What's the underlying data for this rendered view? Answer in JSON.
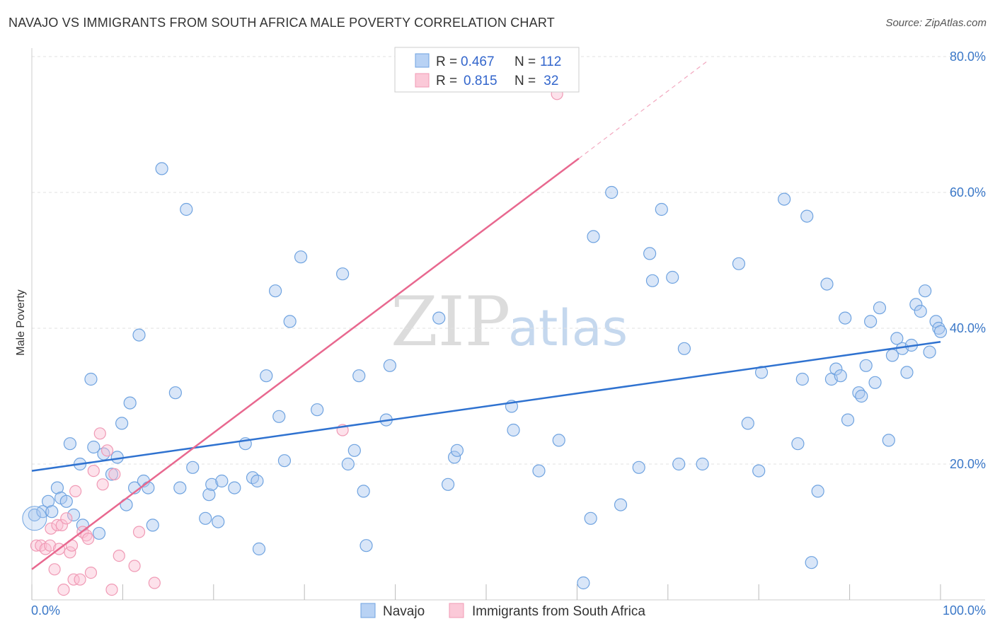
{
  "title": "NAVAJO VS IMMIGRANTS FROM SOUTH AFRICA MALE POVERTY CORRELATION CHART",
  "source": "Source: ZipAtlas.com",
  "watermark": {
    "zip": "ZIP",
    "atlas": "atlas"
  },
  "legend_top": {
    "rows": [
      {
        "r_label": "R = ",
        "r_value": "0.467",
        "n_label": "N = ",
        "n_value": "112"
      },
      {
        "r_label": "R = ",
        "r_value": "0.815",
        "n_label": "N = ",
        "n_value": " 32"
      }
    ]
  },
  "chart_data": {
    "type": "scatter",
    "title": "NAVAJO VS IMMIGRANTS FROM SOUTH AFRICA MALE POVERTY CORRELATION CHART",
    "xlabel": "",
    "ylabel": "Male Poverty",
    "xlim": [
      0,
      100
    ],
    "ylim": [
      0,
      80
    ],
    "x_tick_labels": [
      "0.0%",
      "100.0%"
    ],
    "y_ticks": [
      20,
      40,
      60,
      80
    ],
    "y_tick_labels": [
      "20.0%",
      "40.0%",
      "60.0%",
      "80.0%"
    ],
    "grid": true,
    "legend_placement": "bottom-center",
    "colors": {
      "navajo": "#6fa3e0",
      "south_africa": "#f09ab5",
      "navajo_line": "#2f72d0",
      "south_africa_line": "#e8688f"
    },
    "series": [
      {
        "name": "Navajo",
        "r": 0.467,
        "n": 112,
        "trend": {
          "x": [
            0,
            100
          ],
          "y": [
            19.0,
            38.0
          ]
        },
        "points": [
          [
            0.3,
            12.5
          ],
          [
            1.2,
            13
          ],
          [
            1.8,
            14.5
          ],
          [
            2.2,
            13
          ],
          [
            2.8,
            16.5
          ],
          [
            3.2,
            15
          ],
          [
            3.8,
            14.5
          ],
          [
            4.2,
            23
          ],
          [
            4.6,
            12.5
          ],
          [
            5.3,
            20
          ],
          [
            5.6,
            11
          ],
          [
            6.5,
            32.5
          ],
          [
            6.8,
            22.5
          ],
          [
            7.4,
            9.8
          ],
          [
            7.9,
            21.5
          ],
          [
            8.8,
            18.5
          ],
          [
            9.4,
            21
          ],
          [
            9.9,
            26
          ],
          [
            10.4,
            14
          ],
          [
            10.8,
            29
          ],
          [
            11.3,
            16.5
          ],
          [
            11.8,
            39
          ],
          [
            12.3,
            17.5
          ],
          [
            12.8,
            16.5
          ],
          [
            13.3,
            11
          ],
          [
            14.3,
            63.5
          ],
          [
            15.8,
            30.5
          ],
          [
            16.3,
            16.5
          ],
          [
            17.0,
            57.5
          ],
          [
            17.7,
            19.5
          ],
          [
            19.1,
            12
          ],
          [
            19.5,
            15.5
          ],
          [
            19.8,
            17
          ],
          [
            20.5,
            11.5
          ],
          [
            20.9,
            17.5
          ],
          [
            22.3,
            16.5
          ],
          [
            23.5,
            23
          ],
          [
            24.3,
            18
          ],
          [
            24.8,
            17.5
          ],
          [
            25.0,
            7.5
          ],
          [
            25.8,
            33
          ],
          [
            26.8,
            45.5
          ],
          [
            27.2,
            27
          ],
          [
            27.8,
            20.5
          ],
          [
            28.4,
            41
          ],
          [
            29.6,
            50.5
          ],
          [
            31.4,
            28
          ],
          [
            34.2,
            48
          ],
          [
            34.8,
            20
          ],
          [
            35.5,
            22
          ],
          [
            36.0,
            33
          ],
          [
            36.5,
            16
          ],
          [
            36.8,
            8
          ],
          [
            39.0,
            26.5
          ],
          [
            39.4,
            34.5
          ],
          [
            44.8,
            41.5
          ],
          [
            45.8,
            17
          ],
          [
            46.5,
            21
          ],
          [
            46.8,
            22
          ],
          [
            52.8,
            28.5
          ],
          [
            53.0,
            25
          ],
          [
            55.8,
            19
          ],
          [
            58.0,
            23.5
          ],
          [
            60.7,
            2.5
          ],
          [
            61.5,
            12
          ],
          [
            61.8,
            53.5
          ],
          [
            63.8,
            60
          ],
          [
            64.8,
            14
          ],
          [
            66.8,
            19.5
          ],
          [
            68.0,
            51
          ],
          [
            68.3,
            47
          ],
          [
            69.3,
            57.5
          ],
          [
            70.5,
            47.5
          ],
          [
            71.2,
            20
          ],
          [
            71.8,
            37
          ],
          [
            73.8,
            20
          ],
          [
            77.8,
            49.5
          ],
          [
            78.8,
            26
          ],
          [
            80.0,
            19
          ],
          [
            80.3,
            33.5
          ],
          [
            82.8,
            59
          ],
          [
            84.3,
            23
          ],
          [
            84.8,
            32.5
          ],
          [
            85.3,
            56.5
          ],
          [
            85.8,
            5.5
          ],
          [
            86.5,
            16
          ],
          [
            87.5,
            46.5
          ],
          [
            88.0,
            32.5
          ],
          [
            88.5,
            34
          ],
          [
            89.0,
            33
          ],
          [
            89.5,
            41.5
          ],
          [
            89.8,
            26.5
          ],
          [
            91.0,
            30.5
          ],
          [
            91.3,
            30
          ],
          [
            91.8,
            34.5
          ],
          [
            92.3,
            41
          ],
          [
            92.8,
            32
          ],
          [
            93.3,
            43
          ],
          [
            94.3,
            23.5
          ],
          [
            94.7,
            36
          ],
          [
            95.2,
            38.5
          ],
          [
            95.8,
            37
          ],
          [
            96.3,
            33.5
          ],
          [
            96.8,
            37.5
          ],
          [
            97.3,
            43.5
          ],
          [
            97.8,
            42.5
          ],
          [
            98.3,
            45.5
          ],
          [
            98.8,
            36.5
          ],
          [
            99.5,
            41
          ],
          [
            99.8,
            40
          ],
          [
            100.0,
            39.5
          ]
        ]
      },
      {
        "name": "Immigrants from South Africa",
        "r": 0.815,
        "n": 32,
        "trend": {
          "x": [
            0,
            60.2
          ],
          "y": [
            4.5,
            65.0
          ]
        },
        "trend_extension": {
          "x": [
            60.2,
            74.5
          ],
          "y": [
            65.0,
            79.5
          ]
        },
        "points": [
          [
            0.5,
            8
          ],
          [
            1.0,
            8
          ],
          [
            1.5,
            7.5
          ],
          [
            2.0,
            8
          ],
          [
            2.1,
            10.5
          ],
          [
            2.5,
            4.5
          ],
          [
            2.8,
            11
          ],
          [
            3.0,
            7.5
          ],
          [
            3.3,
            11
          ],
          [
            3.5,
            1.5
          ],
          [
            3.8,
            12
          ],
          [
            4.2,
            7
          ],
          [
            4.4,
            8
          ],
          [
            4.6,
            3
          ],
          [
            4.8,
            16
          ],
          [
            5.3,
            3
          ],
          [
            5.6,
            10
          ],
          [
            6.0,
            9.5
          ],
          [
            6.2,
            9
          ],
          [
            6.5,
            4
          ],
          [
            6.8,
            19
          ],
          [
            7.5,
            24.5
          ],
          [
            7.8,
            17
          ],
          [
            8.3,
            22
          ],
          [
            8.8,
            1.5
          ],
          [
            9.1,
            18.5
          ],
          [
            9.6,
            6.5
          ],
          [
            11.3,
            5
          ],
          [
            11.8,
            10
          ],
          [
            13.5,
            2.5
          ],
          [
            34.2,
            25
          ],
          [
            57.8,
            74.5
          ]
        ]
      }
    ]
  },
  "bottom_legend": [
    {
      "label": "Navajo"
    },
    {
      "label": "Immigrants from South Africa"
    }
  ]
}
